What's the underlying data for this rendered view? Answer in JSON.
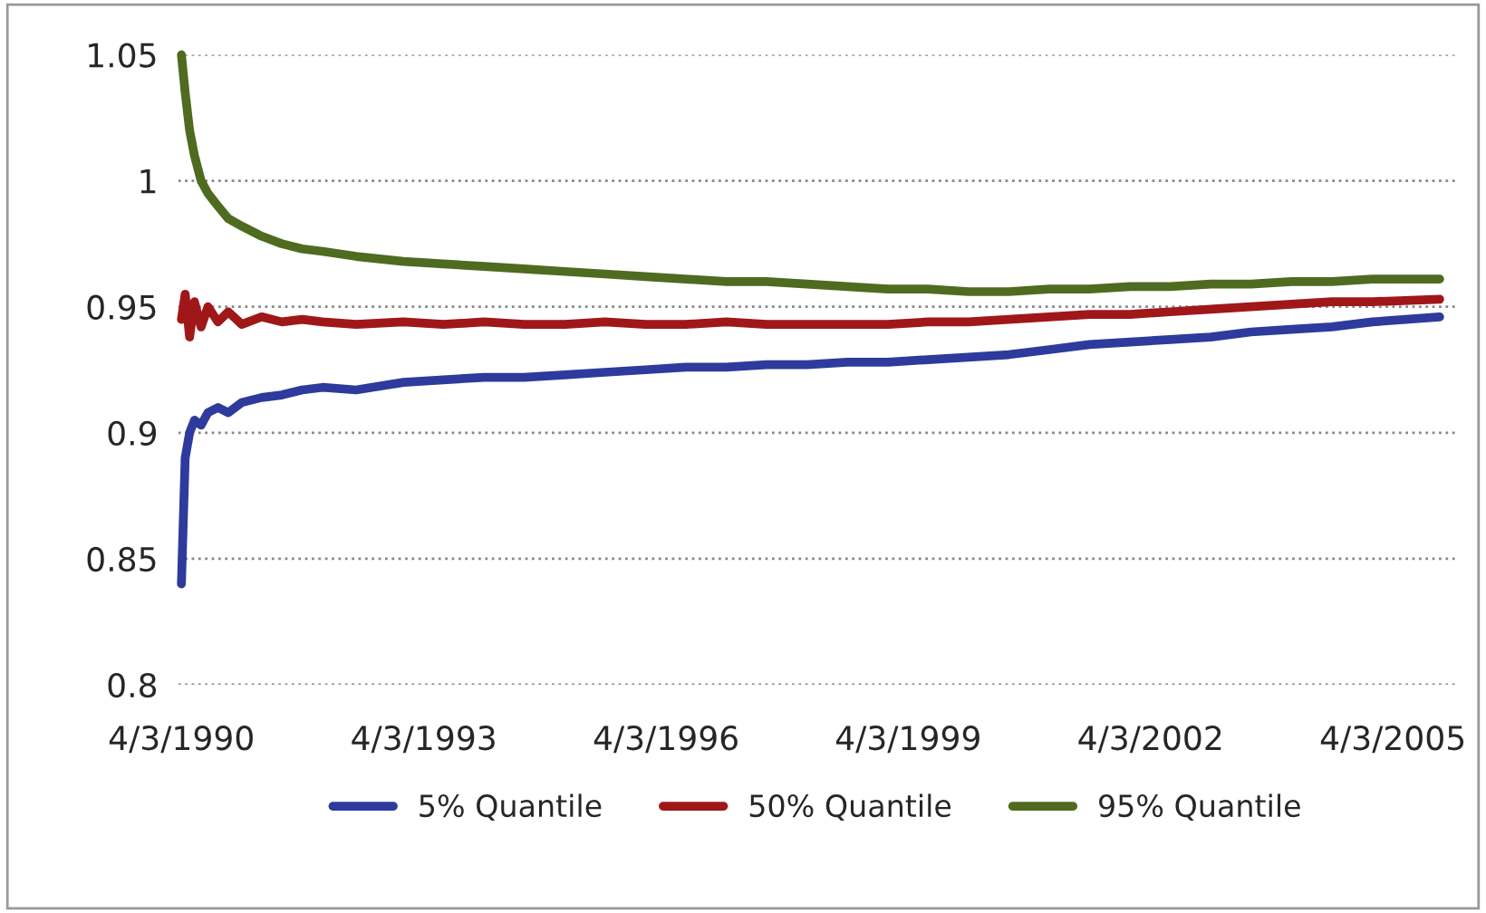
{
  "chart_data": {
    "type": "line",
    "x": [
      "1990-04-03",
      "1990-04-20",
      "1990-05-10",
      "1990-06-01",
      "1990-07-01",
      "1990-08-01",
      "1990-09-15",
      "1990-11-01",
      "1991-01-01",
      "1991-04-01",
      "1991-07-01",
      "1991-10-01",
      "1992-01-01",
      "1992-06-01",
      "1993-01-01",
      "1993-07-01",
      "1994-01-01",
      "1994-07-01",
      "1995-01-01",
      "1995-07-01",
      "1996-01-01",
      "1996-07-01",
      "1997-01-01",
      "1997-07-01",
      "1998-01-01",
      "1998-07-01",
      "1999-01-01",
      "1999-07-01",
      "2000-01-01",
      "2000-07-01",
      "2001-01-01",
      "2001-07-01",
      "2002-01-01",
      "2002-07-01",
      "2003-01-01",
      "2003-07-01",
      "2004-01-01",
      "2004-07-01",
      "2005-01-01",
      "2005-11-01"
    ],
    "series": [
      {
        "name": "5% Quantile",
        "color": "#2e3a9c",
        "values": [
          0.84,
          0.89,
          0.9,
          0.905,
          0.903,
          0.908,
          0.91,
          0.908,
          0.912,
          0.914,
          0.915,
          0.917,
          0.918,
          0.917,
          0.92,
          0.921,
          0.922,
          0.922,
          0.923,
          0.924,
          0.925,
          0.926,
          0.926,
          0.927,
          0.927,
          0.928,
          0.928,
          0.929,
          0.93,
          0.931,
          0.933,
          0.935,
          0.936,
          0.937,
          0.938,
          0.94,
          0.941,
          0.942,
          0.944,
          0.946
        ]
      },
      {
        "name": "50% Quantile",
        "color": "#a0171a",
        "values": [
          0.945,
          0.955,
          0.938,
          0.952,
          0.942,
          0.95,
          0.944,
          0.948,
          0.943,
          0.946,
          0.944,
          0.945,
          0.944,
          0.943,
          0.944,
          0.943,
          0.944,
          0.943,
          0.943,
          0.944,
          0.943,
          0.943,
          0.944,
          0.943,
          0.943,
          0.943,
          0.943,
          0.944,
          0.944,
          0.945,
          0.946,
          0.947,
          0.947,
          0.948,
          0.949,
          0.95,
          0.951,
          0.952,
          0.952,
          0.953
        ]
      },
      {
        "name": "95% Quantile",
        "color": "#4f6b1f",
        "values": [
          1.05,
          1.035,
          1.02,
          1.01,
          1.0,
          0.995,
          0.99,
          0.985,
          0.982,
          0.978,
          0.975,
          0.973,
          0.972,
          0.97,
          0.968,
          0.967,
          0.966,
          0.965,
          0.964,
          0.963,
          0.962,
          0.961,
          0.96,
          0.96,
          0.959,
          0.958,
          0.957,
          0.957,
          0.956,
          0.956,
          0.957,
          0.957,
          0.958,
          0.958,
          0.959,
          0.959,
          0.96,
          0.96,
          0.961,
          0.961
        ]
      }
    ],
    "xlim": [
      "1990-03-20",
      "2006-01-15"
    ],
    "xticks": [
      {
        "value": "1990-04-03",
        "label": "4/3/1990"
      },
      {
        "value": "1993-04-03",
        "label": "4/3/1993"
      },
      {
        "value": "1996-04-03",
        "label": "4/3/1996"
      },
      {
        "value": "1999-04-03",
        "label": "4/3/1999"
      },
      {
        "value": "2002-04-03",
        "label": "4/3/2002"
      },
      {
        "value": "2005-04-03",
        "label": "4/3/2005"
      }
    ],
    "ylim": [
      0.8,
      1.05
    ],
    "yticks": [
      {
        "value": 0.8,
        "label": "0.8"
      },
      {
        "value": 0.85,
        "label": "0.85"
      },
      {
        "value": 0.9,
        "label": "0.9"
      },
      {
        "value": 0.95,
        "label": "0.95"
      },
      {
        "value": 1,
        "label": "1"
      },
      {
        "value": 1.05,
        "label": "1.05"
      }
    ],
    "grid": "y",
    "legend": "bottom",
    "marker": "none",
    "line_style": "solid"
  }
}
